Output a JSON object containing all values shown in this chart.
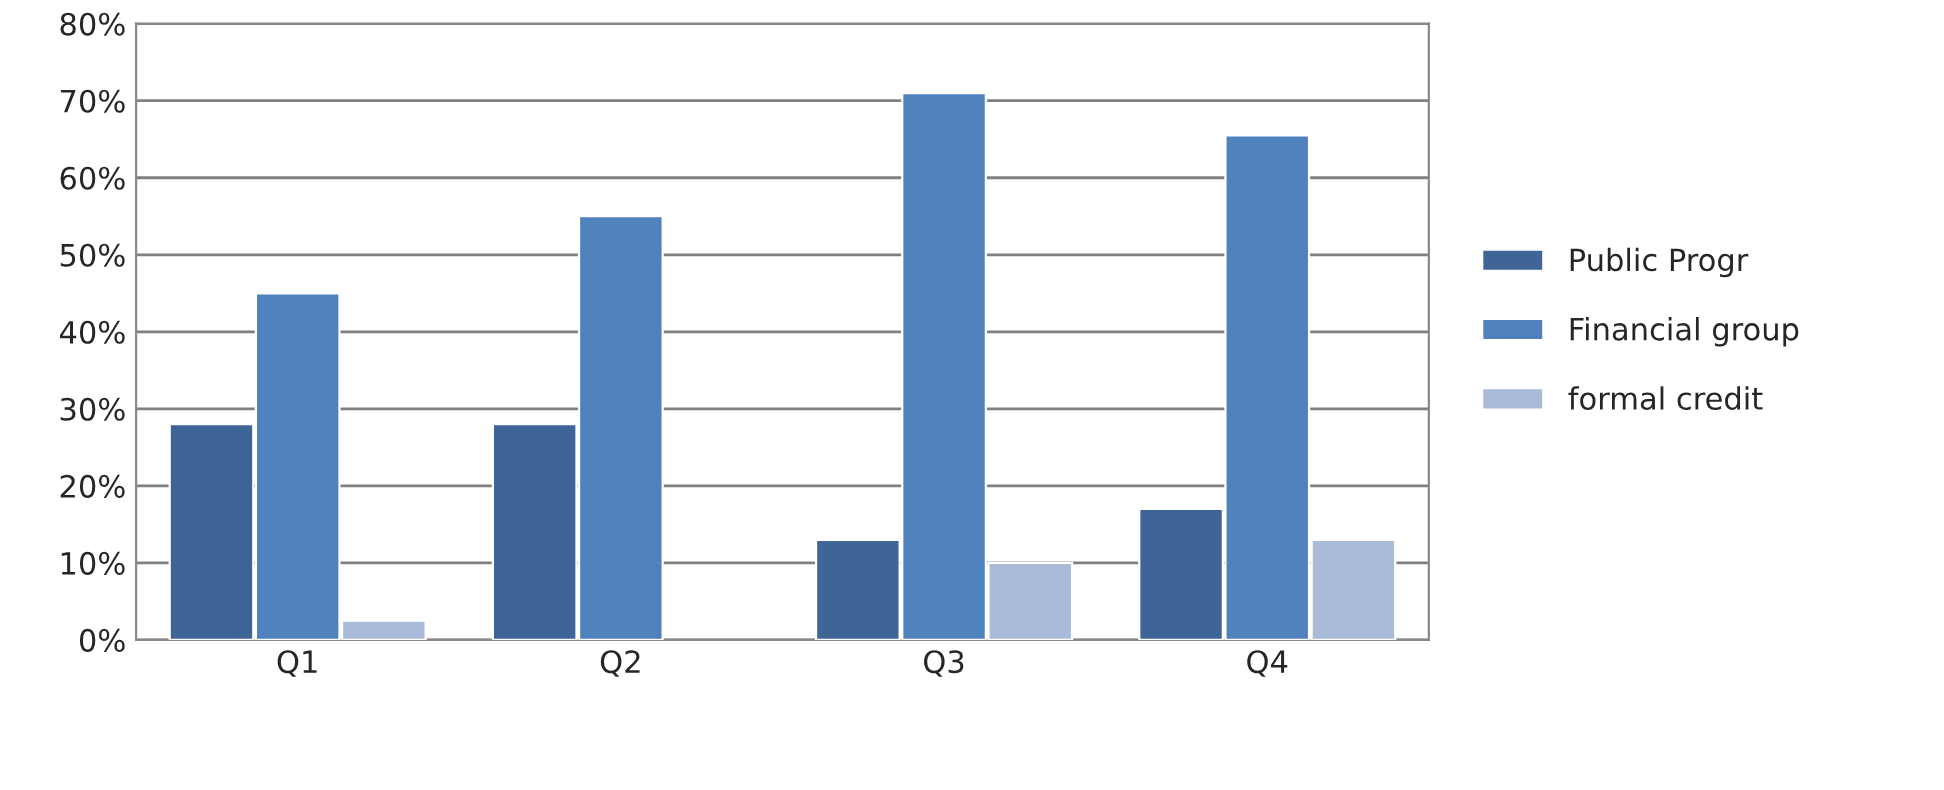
{
  "chart_data": {
    "type": "bar",
    "categories": [
      "Q1",
      "Q2",
      "Q3",
      "Q4"
    ],
    "series": [
      {
        "name": "Public Progr",
        "color": "#3f6597",
        "values": [
          28,
          28,
          13,
          17
        ]
      },
      {
        "name": "Financial group",
        "color": "#4f81bd",
        "values": [
          45,
          55,
          71,
          65.5
        ]
      },
      {
        "name": "formal credit",
        "color": "#a9bbd9",
        "values": [
          2.5,
          null,
          10,
          13
        ]
      }
    ],
    "ylim": [
      0,
      80
    ],
    "yticks": [
      {
        "value": 0,
        "label": "0%"
      },
      {
        "value": 10,
        "label": "10%"
      },
      {
        "value": 20,
        "label": "20%"
      },
      {
        "value": 30,
        "label": "30%"
      },
      {
        "value": 40,
        "label": "40%"
      },
      {
        "value": 50,
        "label": "50%"
      },
      {
        "value": 60,
        "label": "60%"
      },
      {
        "value": 70,
        "label": "70%"
      },
      {
        "value": 80,
        "label": "80%"
      }
    ],
    "grid": "y",
    "legend": "right"
  }
}
